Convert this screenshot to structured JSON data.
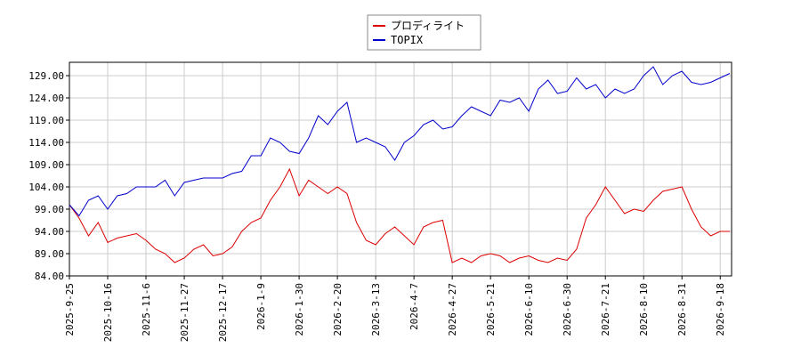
{
  "chart_data": {
    "type": "line",
    "categories": [
      "2025-9-25",
      null,
      null,
      null,
      "2025-10-16",
      null,
      null,
      null,
      "2025-11-6",
      null,
      null,
      null,
      "2025-11-27",
      null,
      null,
      null,
      "2025-12-17",
      null,
      null,
      null,
      "2026-1-9",
      null,
      null,
      null,
      "2026-1-30",
      null,
      null,
      null,
      "2026-2-20",
      null,
      null,
      null,
      "2026-3-13",
      null,
      null,
      null,
      "2026-4-7",
      null,
      null,
      null,
      "2026-4-27",
      null,
      null,
      null,
      "2026-5-21",
      null,
      null,
      null,
      "2026-6-10",
      null,
      null,
      null,
      "2026-6-30",
      null,
      null,
      null,
      "2026-7-21",
      null,
      null,
      null,
      "2026-8-10",
      null,
      null,
      null,
      "2026-8-31",
      null,
      null,
      null,
      "2026-9-18",
      null
    ],
    "series": [
      {
        "name": "プロディライト",
        "color": "#dd0000",
        "values": [
          100,
          97,
          93,
          96,
          91.5,
          92.5,
          93,
          93.5,
          92,
          90,
          89,
          87,
          88,
          90,
          91,
          88.5,
          89,
          90.5,
          94,
          96,
          97,
          101,
          104,
          108,
          102,
          105.5,
          104,
          102.5,
          104,
          102.5,
          96,
          92,
          91,
          93.5,
          95,
          93,
          91,
          95,
          96,
          96.5,
          87,
          88,
          87,
          88.5,
          89,
          88.5,
          87,
          88,
          88.5,
          87.5,
          87,
          88,
          87.5,
          90,
          97,
          100,
          104,
          101,
          98,
          99,
          98.5,
          101,
          103,
          103.5,
          104,
          99,
          95,
          93,
          94,
          94
        ]
      },
      {
        "name": "TOPIX",
        "color": "#0000cc",
        "values": [
          100,
          97.5,
          101,
          102,
          99,
          102,
          102.5,
          104,
          104,
          104,
          105.5,
          102,
          105,
          105.5,
          106,
          106,
          106,
          107,
          107.5,
          111,
          111,
          115,
          114,
          112,
          111.5,
          115,
          120,
          118,
          121,
          123,
          114,
          115,
          114,
          113,
          110,
          114,
          115.5,
          118,
          119,
          117,
          117.5,
          120,
          122,
          121,
          120,
          123.5,
          123,
          124,
          121,
          126,
          128,
          125,
          125.5,
          128.5,
          126,
          127,
          124,
          126,
          125,
          126,
          129,
          131,
          127,
          129,
          130,
          127.5,
          127,
          127.5,
          128.5,
          129.5
        ]
      }
    ],
    "ylim": [
      84,
      132
    ],
    "yticks": [
      {
        "value": 84,
        "label": "84.00"
      },
      {
        "value": 89,
        "label": "89.00"
      },
      {
        "value": 94,
        "label": "94.00"
      },
      {
        "value": 99,
        "label": "99.00"
      },
      {
        "value": 104,
        "label": "104.00"
      },
      {
        "value": 109,
        "label": "109.00"
      },
      {
        "value": 114,
        "label": "114.00"
      },
      {
        "value": 119,
        "label": "119.00"
      },
      {
        "value": 124,
        "label": "124.00"
      },
      {
        "value": 129,
        "label": "129.00"
      }
    ],
    "grid": true,
    "legend": "top"
  }
}
